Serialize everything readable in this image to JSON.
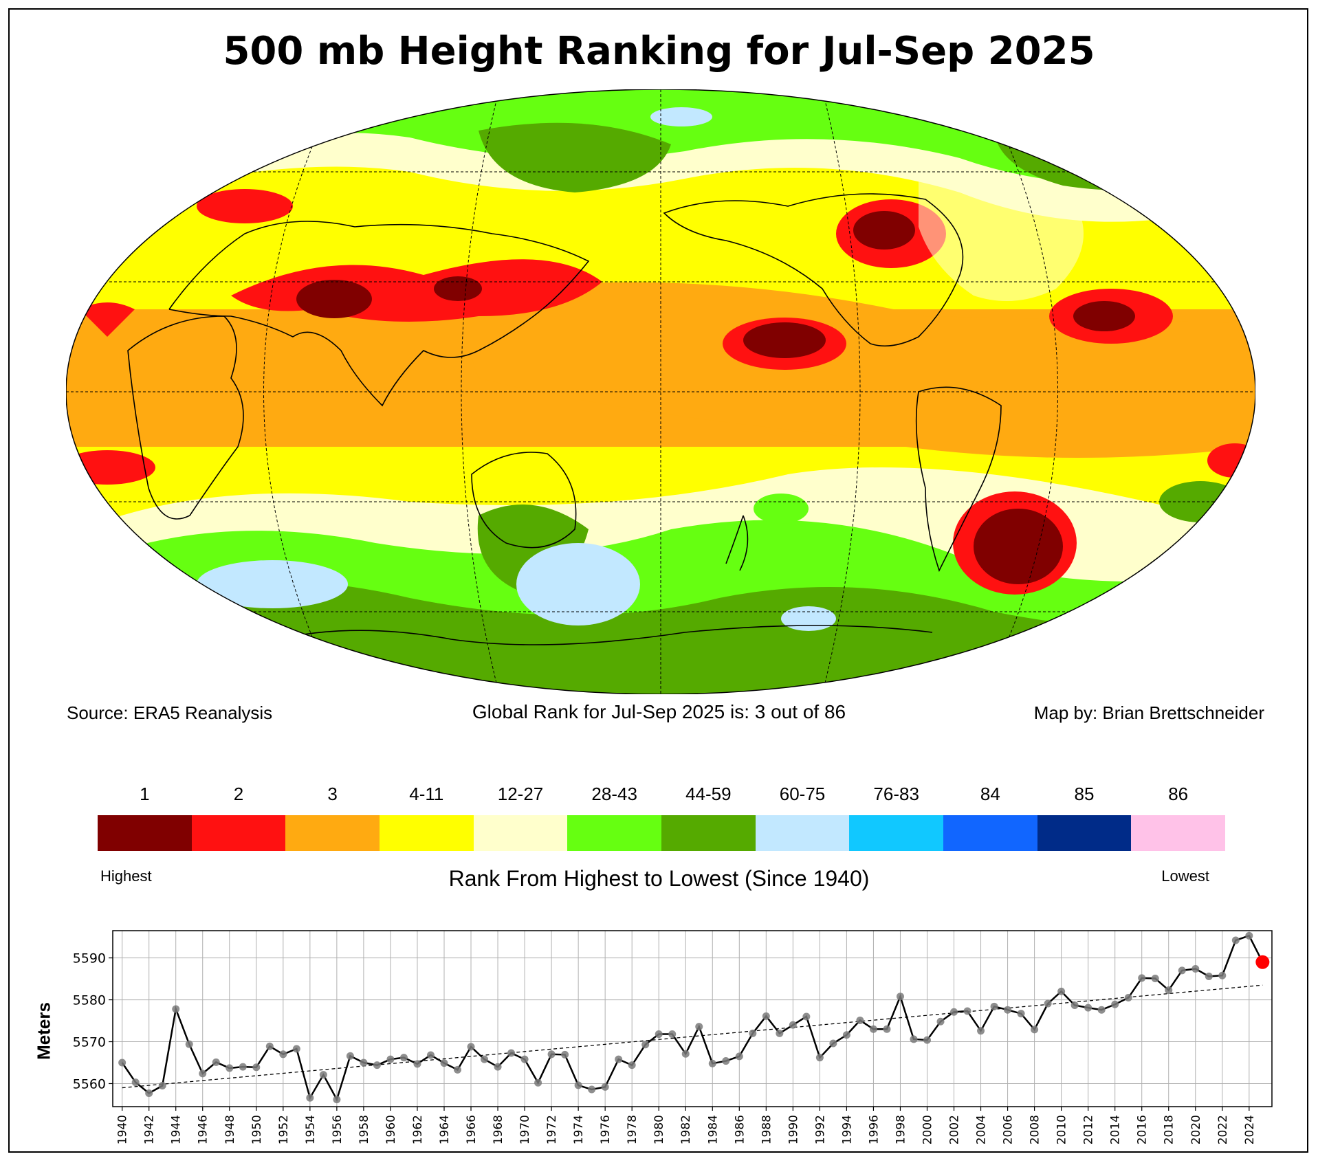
{
  "title": "500 mb Height Ranking for Jul-Sep 2025",
  "source": "Source: ERA5 Reanalysis",
  "global_rank": "Global Rank for Jul-Sep 2025 is: 3 out of 86",
  "credit": "Map by: Brian Brettschneider",
  "legend": {
    "items": [
      {
        "label": "1",
        "color": "#800000"
      },
      {
        "label": "2",
        "color": "#ff1111"
      },
      {
        "label": "3",
        "color": "#ffaa11"
      },
      {
        "label": "4-11",
        "color": "#ffff00"
      },
      {
        "label": "12-27",
        "color": "#ffffcc"
      },
      {
        "label": "28-43",
        "color": "#66ff11"
      },
      {
        "label": "44-59",
        "color": "#55aa00"
      },
      {
        "label": "60-75",
        "color": "#c2e8ff"
      },
      {
        "label": "76-83",
        "color": "#11c8ff"
      },
      {
        "label": "84",
        "color": "#1166ff"
      },
      {
        "label": "85",
        "color": "#002b88"
      },
      {
        "label": "86",
        "color": "#ffc2e8"
      }
    ],
    "highest": "Highest",
    "lowest": "Lowest",
    "caption": "Rank From Highest to Lowest (Since 1940)"
  },
  "chart_data": [
    {
      "type": "map",
      "title": "500 mb Height Ranking for Jul-Sep 2025",
      "projection": "Robinson (Pacific-centered)",
      "regions": [
        {
          "name": "tropical band",
          "rank": "3"
        },
        {
          "name": "mid-latitudes",
          "rank": "4-11"
        },
        {
          "name": "NW Pacific",
          "rank": "1"
        },
        {
          "name": "NE Pacific",
          "rank": "1"
        },
        {
          "name": "South Atlantic / off Argentina",
          "rank": "1"
        },
        {
          "name": "Central Asia",
          "rank": "1"
        },
        {
          "name": "Canada",
          "rank": "1"
        },
        {
          "name": "Southern Ocean",
          "rank": "44-59"
        },
        {
          "name": "Antarctic coast patches",
          "rank": "60-75"
        },
        {
          "name": "Arctic",
          "rank": "28-43"
        }
      ]
    },
    {
      "type": "line",
      "ylabel": "Meters",
      "xlabel": "",
      "ylim": [
        5554.5,
        5596.5
      ],
      "yticks": [
        5560,
        5570,
        5580,
        5590
      ],
      "xlim": [
        1939.3,
        2025.7
      ],
      "xticks": [
        1940,
        1942,
        1944,
        1946,
        1948,
        1950,
        1952,
        1954,
        1956,
        1958,
        1960,
        1962,
        1964,
        1966,
        1968,
        1970,
        1972,
        1974,
        1976,
        1978,
        1980,
        1982,
        1984,
        1986,
        1988,
        1990,
        1992,
        1994,
        1996,
        1998,
        2000,
        2002,
        2004,
        2006,
        2008,
        2010,
        2012,
        2014,
        2016,
        2018,
        2020,
        2022,
        2024
      ],
      "grid": true,
      "years": [
        1940,
        1941,
        1942,
        1943,
        1944,
        1945,
        1946,
        1947,
        1948,
        1949,
        1950,
        1951,
        1952,
        1953,
        1954,
        1955,
        1956,
        1957,
        1958,
        1959,
        1960,
        1961,
        1962,
        1963,
        1964,
        1965,
        1966,
        1967,
        1968,
        1969,
        1970,
        1971,
        1972,
        1973,
        1974,
        1975,
        1976,
        1977,
        1978,
        1979,
        1980,
        1981,
        1982,
        1983,
        1984,
        1985,
        1986,
        1987,
        1988,
        1989,
        1990,
        1991,
        1992,
        1993,
        1994,
        1995,
        1996,
        1997,
        1998,
        1999,
        2000,
        2001,
        2002,
        2003,
        2004,
        2005,
        2006,
        2007,
        2008,
        2009,
        2010,
        2011,
        2012,
        2013,
        2014,
        2015,
        2016,
        2017,
        2018,
        2019,
        2020,
        2021,
        2022,
        2023,
        2024,
        2025
      ],
      "values": [
        5565,
        5560.3,
        5557.7,
        5559.5,
        5577.8,
        5569.4,
        5562.4,
        5565.1,
        5563.7,
        5564,
        5563.9,
        5568.9,
        5567,
        5568.3,
        5556.6,
        5562.1,
        5556.2,
        5566.6,
        5565,
        5564.4,
        5565.8,
        5566.2,
        5564.7,
        5566.8,
        5564.9,
        5563.3,
        5568.8,
        5565.8,
        5564,
        5567.3,
        5565.8,
        5560.2,
        5567,
        5566.9,
        5559.6,
        5558.6,
        5559.2,
        5565.8,
        5564.4,
        5569.3,
        5571.8,
        5571.8,
        5567.1,
        5573.6,
        5564.8,
        5565.4,
        5566.5,
        5572,
        5576.1,
        5572,
        5574,
        5576,
        5566.2,
        5569.6,
        5571.6,
        5575.1,
        5573,
        5573,
        5580.8,
        5570.6,
        5570.4,
        5574.8,
        5577.1,
        5577.3,
        5572.6,
        5578.4,
        5577.6,
        5576.7,
        5572.9,
        5579.1,
        5582,
        5578.7,
        5578.1,
        5577.6,
        5578.9,
        5580.5,
        5585.2,
        5585.1,
        5582.3,
        5587,
        5587.4,
        5585.6,
        5585.8,
        5594.2,
        5595.3,
        5589
      ],
      "trend": {
        "start": [
          1940,
          5559
        ],
        "end": [
          2025,
          5583.5
        ]
      },
      "highlight": {
        "year": 2025,
        "value": 5589,
        "color": "#ff0000"
      }
    }
  ]
}
